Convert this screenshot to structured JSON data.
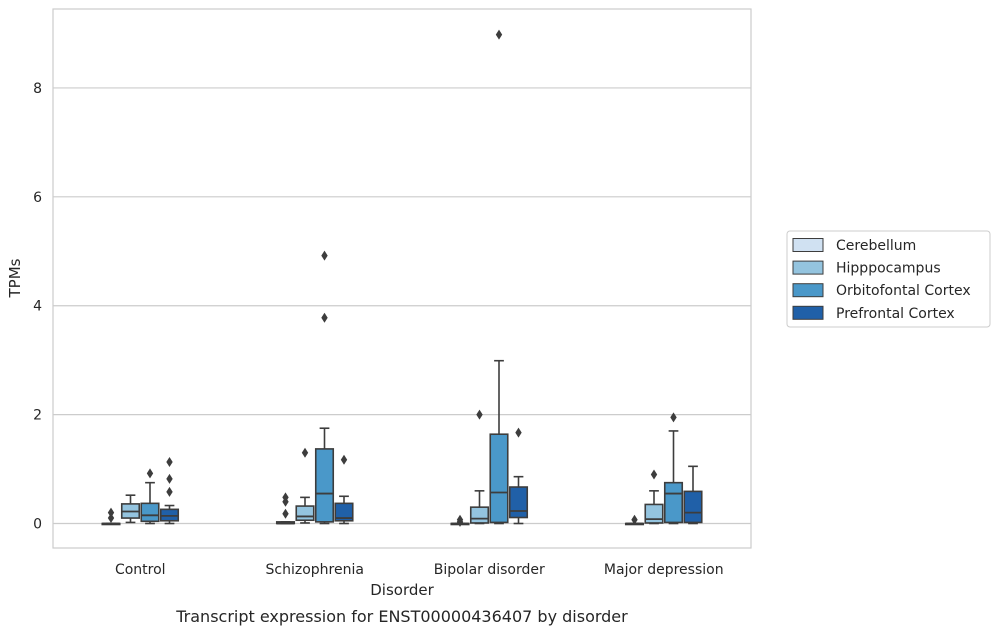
{
  "chart_data": {
    "type": "box",
    "title": "Transcript expression for ENST00000436407 by disorder",
    "xlabel": "Disorder",
    "ylabel": "TPMs",
    "ylim": [
      -0.45,
      9.45
    ],
    "yticks": [
      0,
      2,
      4,
      6,
      8
    ],
    "categories": [
      "Control",
      "Schizophrenia",
      "Bipolar disorder",
      "Major depression"
    ],
    "grid": "horizontal",
    "legend_position": "right",
    "series": [
      {
        "name": "Cerebellum",
        "color": "#d0e1f2",
        "boxes": [
          {
            "whislo": 0,
            "q1": 0,
            "med": 0,
            "q3": 0,
            "whishi": 0,
            "fliers": [
              0.1,
              0.2
            ]
          },
          {
            "whislo": 0,
            "q1": 0,
            "med": 0,
            "q3": 0.03,
            "whishi": 0.03,
            "fliers": [
              0.18,
              0.4,
              0.48
            ]
          },
          {
            "whislo": 0,
            "q1": 0,
            "med": 0,
            "q3": 0,
            "whishi": 0,
            "fliers": [
              0.03,
              0.07
            ]
          },
          {
            "whislo": 0,
            "q1": 0,
            "med": 0,
            "q3": 0,
            "whishi": 0,
            "fliers": [
              0.07
            ]
          }
        ]
      },
      {
        "name": "Hipppocampus",
        "color": "#94c4df",
        "boxes": [
          {
            "whislo": 0.02,
            "q1": 0.1,
            "med": 0.22,
            "q3": 0.36,
            "whishi": 0.52,
            "fliers": []
          },
          {
            "whislo": 0.01,
            "q1": 0.06,
            "med": 0.13,
            "q3": 0.32,
            "whishi": 0.48,
            "fliers": [
              1.3
            ]
          },
          {
            "whislo": 0,
            "q1": 0.01,
            "med": 0.09,
            "q3": 0.3,
            "whishi": 0.6,
            "fliers": [
              2.0
            ]
          },
          {
            "whislo": 0,
            "q1": 0.01,
            "med": 0.08,
            "q3": 0.35,
            "whishi": 0.6,
            "fliers": [
              0.9
            ]
          }
        ]
      },
      {
        "name": "Orbitofontal Cortex",
        "color": "#4a98c9",
        "boxes": [
          {
            "whislo": 0,
            "q1": 0.04,
            "med": 0.15,
            "q3": 0.37,
            "whishi": 0.75,
            "fliers": [
              0.92
            ]
          },
          {
            "whislo": 0,
            "q1": 0.03,
            "med": 0.55,
            "q3": 1.37,
            "whishi": 1.75,
            "fliers": [
              3.78,
              4.92
            ]
          },
          {
            "whislo": 0,
            "q1": 0.02,
            "med": 0.57,
            "q3": 1.64,
            "whishi": 2.99,
            "fliers": [
              8.98
            ]
          },
          {
            "whislo": 0,
            "q1": 0.02,
            "med": 0.55,
            "q3": 0.75,
            "whishi": 1.7,
            "fliers": [
              1.95
            ]
          }
        ]
      },
      {
        "name": "Prefrontal Cortex",
        "color": "#2060a8",
        "boxes": [
          {
            "whislo": 0,
            "q1": 0.05,
            "med": 0.14,
            "q3": 0.26,
            "whishi": 0.33,
            "fliers": [
              0.58,
              0.82,
              1.13
            ]
          },
          {
            "whislo": 0,
            "q1": 0.05,
            "med": 0.1,
            "q3": 0.37,
            "whishi": 0.5,
            "fliers": [
              1.17
            ]
          },
          {
            "whislo": 0,
            "q1": 0.11,
            "med": 0.23,
            "q3": 0.67,
            "whishi": 0.86,
            "fliers": [
              1.67
            ]
          },
          {
            "whislo": 0,
            "q1": 0.02,
            "med": 0.2,
            "q3": 0.59,
            "whishi": 1.05,
            "fliers": []
          }
        ]
      }
    ]
  }
}
